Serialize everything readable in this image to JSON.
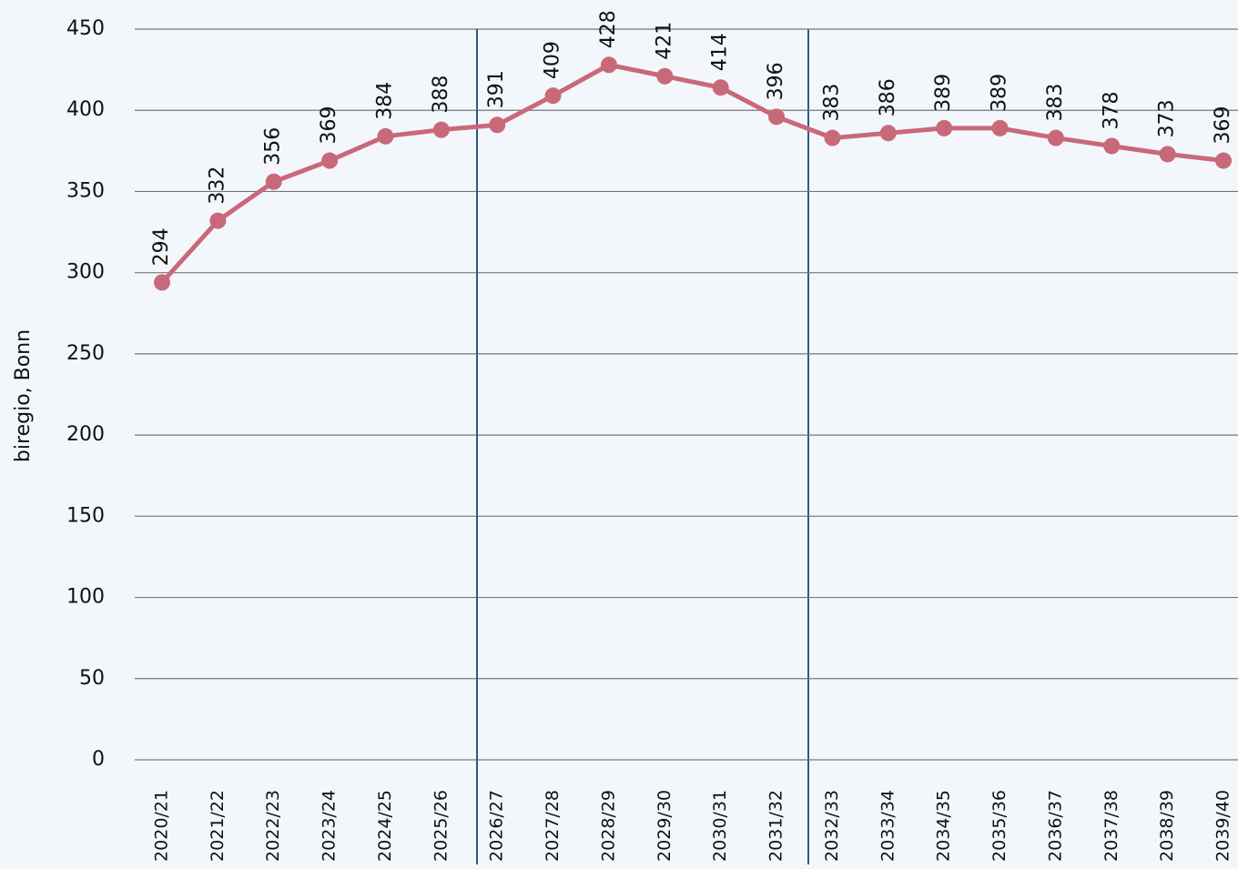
{
  "chart_data": {
    "type": "line",
    "y_label": "biregio, Bonn",
    "categories": [
      "2020/21",
      "2021/22",
      "2022/23",
      "2023/24",
      "2024/25",
      "2025/26",
      "2026/27",
      "2027/28",
      "2028/29",
      "2029/30",
      "2030/31",
      "2031/32",
      "2032/33",
      "2033/34",
      "2034/35",
      "2035/36",
      "2036/37",
      "2037/38",
      "2038/39",
      "2039/40"
    ],
    "values": [
      294,
      332,
      356,
      369,
      384,
      388,
      391,
      409,
      428,
      421,
      414,
      396,
      383,
      386,
      389,
      389,
      383,
      378,
      373,
      369
    ],
    "color": "#c8697a",
    "ylim": [
      0,
      450
    ],
    "yticks": [
      0,
      50,
      100,
      150,
      200,
      250,
      300,
      350,
      400,
      450
    ],
    "grid": true
  }
}
